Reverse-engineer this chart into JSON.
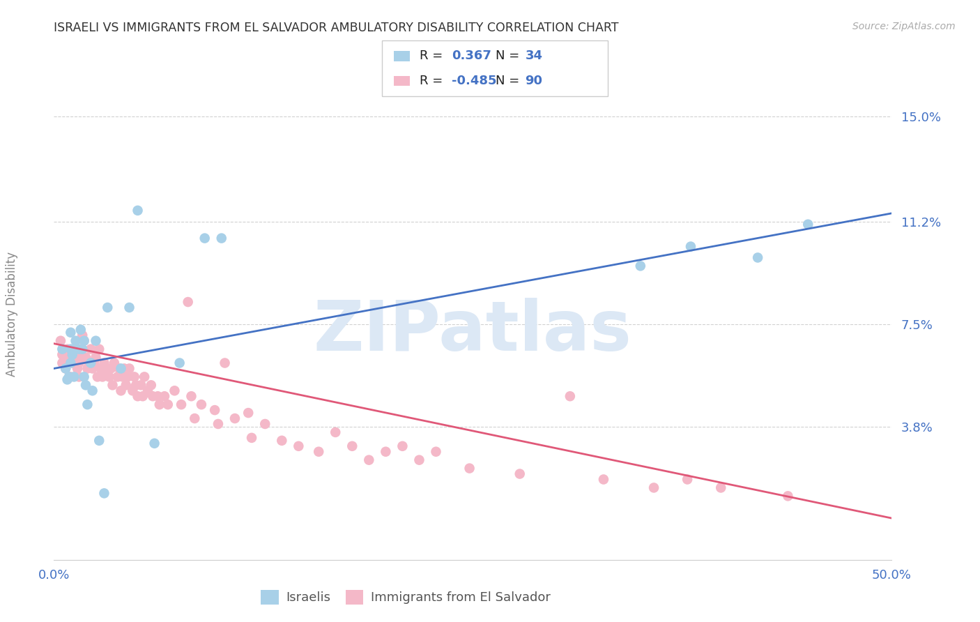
{
  "title": "ISRAELI VS IMMIGRANTS FROM EL SALVADOR AMBULATORY DISABILITY CORRELATION CHART",
  "source": "Source: ZipAtlas.com",
  "ylabel": "Ambulatory Disability",
  "xlim": [
    0.0,
    0.5
  ],
  "ylim": [
    -0.01,
    0.165
  ],
  "ytick_values": [
    0.038,
    0.075,
    0.112,
    0.15
  ],
  "ytick_labels": [
    "3.8%",
    "7.5%",
    "11.2%",
    "15.0%"
  ],
  "legend1_label": "Israelis",
  "legend2_label": "Immigrants from El Salvador",
  "blue_scatter_color": "#a8d0e8",
  "blue_line_color": "#4472c4",
  "pink_scatter_color": "#f4b8c8",
  "pink_line_color": "#e05878",
  "watermark": "ZIPatlas",
  "watermark_color": "#dce8f5",
  "grid_color": "#cccccc",
  "background_color": "#ffffff",
  "title_color": "#333333",
  "axis_label_color": "#888888",
  "tick_label_color": "#4472c4",
  "r1": "0.367",
  "n1": "34",
  "r2": "-0.485",
  "n2": "90",
  "israelis_x": [
    0.005,
    0.007,
    0.008,
    0.009,
    0.01,
    0.01,
    0.01,
    0.011,
    0.012,
    0.013,
    0.015,
    0.016,
    0.017,
    0.018,
    0.018,
    0.019,
    0.02,
    0.022,
    0.023,
    0.025,
    0.027,
    0.03,
    0.032,
    0.04,
    0.045,
    0.05,
    0.06,
    0.075,
    0.09,
    0.1,
    0.35,
    0.38,
    0.42,
    0.45
  ],
  "israelis_y": [
    0.066,
    0.059,
    0.055,
    0.056,
    0.066,
    0.072,
    0.061,
    0.064,
    0.056,
    0.069,
    0.066,
    0.073,
    0.066,
    0.069,
    0.056,
    0.053,
    0.046,
    0.061,
    0.051,
    0.069,
    0.033,
    0.014,
    0.081,
    0.059,
    0.081,
    0.116,
    0.032,
    0.061,
    0.106,
    0.106,
    0.096,
    0.103,
    0.099,
    0.111
  ],
  "salvador_x": [
    0.004,
    0.005,
    0.005,
    0.006,
    0.007,
    0.007,
    0.008,
    0.009,
    0.01,
    0.01,
    0.011,
    0.012,
    0.013,
    0.014,
    0.014,
    0.015,
    0.015,
    0.016,
    0.017,
    0.018,
    0.019,
    0.02,
    0.021,
    0.022,
    0.023,
    0.024,
    0.025,
    0.026,
    0.027,
    0.028,
    0.029,
    0.03,
    0.031,
    0.033,
    0.034,
    0.035,
    0.036,
    0.038,
    0.039,
    0.04,
    0.041,
    0.042,
    0.043,
    0.044,
    0.045,
    0.047,
    0.048,
    0.049,
    0.05,
    0.052,
    0.053,
    0.054,
    0.056,
    0.058,
    0.059,
    0.062,
    0.063,
    0.066,
    0.068,
    0.072,
    0.076,
    0.08,
    0.082,
    0.084,
    0.088,
    0.096,
    0.098,
    0.102,
    0.108,
    0.116,
    0.118,
    0.126,
    0.136,
    0.146,
    0.158,
    0.168,
    0.178,
    0.188,
    0.198,
    0.208,
    0.218,
    0.228,
    0.248,
    0.278,
    0.308,
    0.328,
    0.358,
    0.378,
    0.398,
    0.438
  ],
  "salvador_y": [
    0.069,
    0.064,
    0.061,
    0.063,
    0.061,
    0.059,
    0.066,
    0.061,
    0.063,
    0.056,
    0.061,
    0.064,
    0.066,
    0.063,
    0.059,
    0.056,
    0.061,
    0.064,
    0.071,
    0.069,
    0.063,
    0.059,
    0.061,
    0.066,
    0.059,
    0.061,
    0.063,
    0.056,
    0.066,
    0.059,
    0.056,
    0.061,
    0.059,
    0.056,
    0.059,
    0.053,
    0.061,
    0.056,
    0.059,
    0.051,
    0.056,
    0.059,
    0.053,
    0.056,
    0.059,
    0.051,
    0.056,
    0.053,
    0.049,
    0.053,
    0.049,
    0.056,
    0.051,
    0.053,
    0.049,
    0.049,
    0.046,
    0.049,
    0.046,
    0.051,
    0.046,
    0.083,
    0.049,
    0.041,
    0.046,
    0.044,
    0.039,
    0.061,
    0.041,
    0.043,
    0.034,
    0.039,
    0.033,
    0.031,
    0.029,
    0.036,
    0.031,
    0.026,
    0.029,
    0.031,
    0.026,
    0.029,
    0.023,
    0.021,
    0.049,
    0.019,
    0.016,
    0.019,
    0.016,
    0.013
  ],
  "blue_trend_x": [
    0.0,
    0.5
  ],
  "blue_trend_y": [
    0.059,
    0.115
  ],
  "pink_trend_x": [
    0.0,
    0.5
  ],
  "pink_trend_y": [
    0.068,
    0.005
  ]
}
